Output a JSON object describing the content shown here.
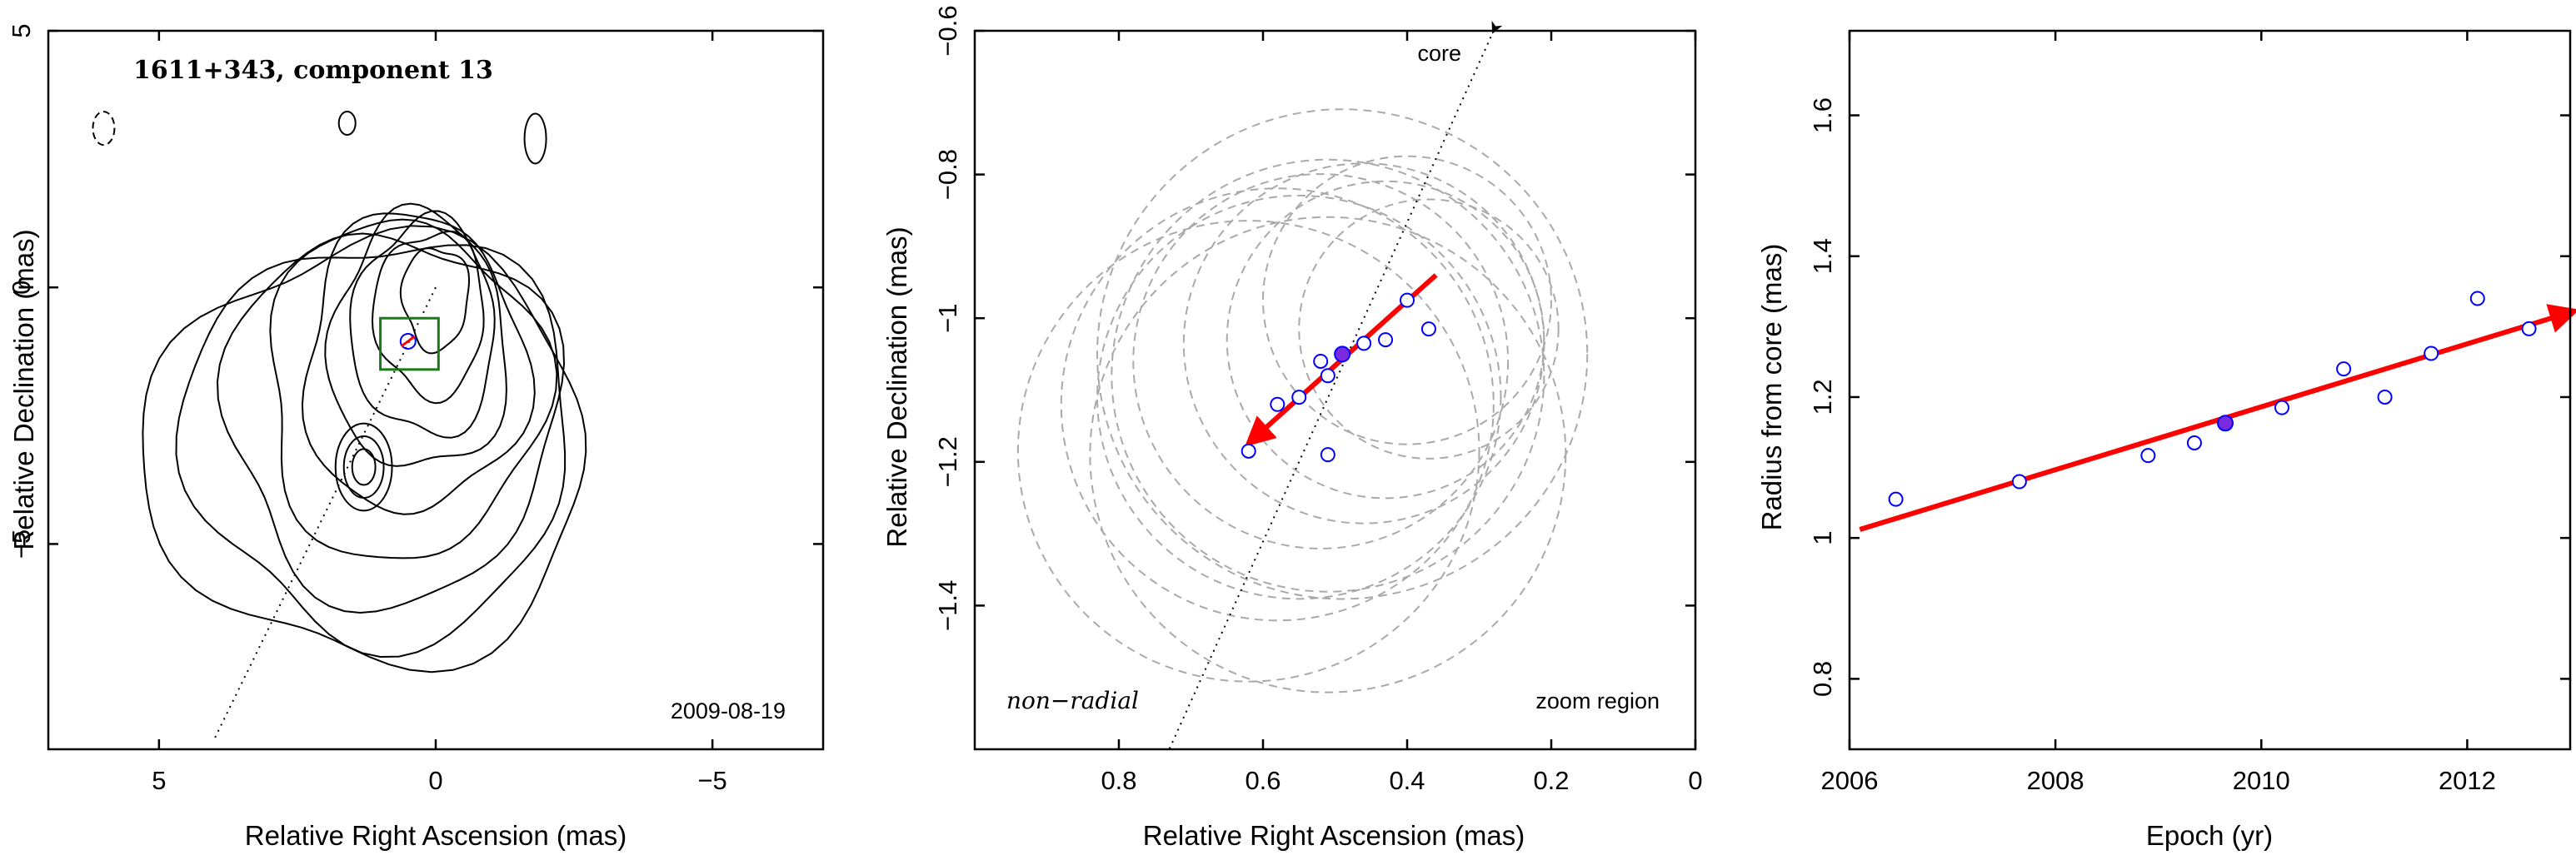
{
  "chart_data": [
    {
      "panel": "map",
      "type": "contour",
      "title": "1611+343, component 13",
      "xlabel": "Relative Right Ascension (mas)",
      "ylabel": "Relative Declination (mas)",
      "xlim": [
        7,
        -7
      ],
      "ylim": [
        -9,
        5
      ],
      "xticks": [
        5,
        0,
        -5
      ],
      "xtick_labels": [
        "5",
        "0",
        "−5"
      ],
      "yticks": [
        5,
        0,
        -5
      ],
      "ytick_labels": [
        "5",
        "0",
        "−5"
      ],
      "date_label": "2009-08-19",
      "jet_axis": {
        "from": [
          0,
          0
        ],
        "to": [
          4,
          -8.8
        ]
      },
      "component_position": [
        0.5,
        -1.05
      ],
      "zoom_box": {
        "x": [
          1,
          -0.05
        ],
        "y": [
          -1.6,
          -0.6
        ]
      },
      "zoom_box_color": "#1a7a1a",
      "contour_color": "#000000",
      "marker_color": "#0000ff",
      "highlight_color": "#ff0000"
    },
    {
      "panel": "zoom",
      "type": "scatter",
      "xlabel": "Relative Right Ascension (mas)",
      "ylabel": "Relative Declination (mas)",
      "xlim": [
        1,
        0
      ],
      "ylim": [
        -1.6,
        -0.6
      ],
      "xticks": [
        0.8,
        0.6,
        0.4,
        0.2,
        0
      ],
      "xtick_labels": [
        "0.8",
        "0.6",
        "0.4",
        "0.2",
        "0"
      ],
      "yticks": [
        -0.6,
        -0.8,
        -1,
        -1.2,
        -1.4
      ],
      "ytick_labels": [
        "−0.6",
        "−0.8",
        "−1",
        "−1.2",
        "−1.4"
      ],
      "core_label": "core",
      "non_radial_label": "non−radial",
      "zoom_label": "zoom region",
      "points": [
        {
          "x": 0.62,
          "y": -1.185
        },
        {
          "x": 0.58,
          "y": -1.12
        },
        {
          "x": 0.55,
          "y": -1.11
        },
        {
          "x": 0.52,
          "y": -1.06
        },
        {
          "x": 0.51,
          "y": -1.08
        },
        {
          "x": 0.51,
          "y": -1.19
        },
        {
          "x": 0.46,
          "y": -1.035
        },
        {
          "x": 0.43,
          "y": -1.03
        },
        {
          "x": 0.4,
          "y": -0.975
        },
        {
          "x": 0.37,
          "y": -1.015
        }
      ],
      "highlight_point": {
        "x": 0.49,
        "y": -1.05
      },
      "error_circles": [
        {
          "x": 0.62,
          "y": -1.185,
          "r": 0.32
        },
        {
          "x": 0.58,
          "y": -1.12,
          "r": 0.3
        },
        {
          "x": 0.55,
          "y": -1.11,
          "r": 0.28
        },
        {
          "x": 0.52,
          "y": -1.06,
          "r": 0.26
        },
        {
          "x": 0.51,
          "y": -1.08,
          "r": 0.3
        },
        {
          "x": 0.51,
          "y": -1.19,
          "r": 0.33
        },
        {
          "x": 0.46,
          "y": -1.035,
          "r": 0.25
        },
        {
          "x": 0.43,
          "y": -1.03,
          "r": 0.22
        },
        {
          "x": 0.4,
          "y": -0.975,
          "r": 0.2
        },
        {
          "x": 0.37,
          "y": -1.015,
          "r": 0.18
        },
        {
          "x": 0.49,
          "y": -1.05,
          "r": 0.34
        }
      ],
      "velocity_arrow": {
        "from": [
          0.36,
          -0.94
        ],
        "to": [
          0.61,
          -1.165
        ]
      },
      "jet_axis": {
        "from": [
          0.28,
          -0.6
        ],
        "to": [
          0.73,
          -1.6
        ]
      },
      "marker_color": "#0000ff",
      "highlight_color": "#7a2ae0",
      "arrow_color": "#ff0000",
      "circle_color": "#aaaaaa"
    },
    {
      "panel": "radius",
      "type": "scatter",
      "xlabel": "Epoch (yr)",
      "ylabel": "Radius from core (mas)",
      "xlim": [
        2006,
        2013
      ],
      "ylim": [
        0.7,
        1.72
      ],
      "xticks": [
        2006,
        2008,
        2010,
        2012
      ],
      "xtick_labels": [
        "2006",
        "2008",
        "2010",
        "2012"
      ],
      "yticks": [
        0.8,
        1,
        1.2,
        1.4,
        1.6
      ],
      "ytick_labels": [
        "0.8",
        "1",
        "1.2",
        "1.4",
        "1.6"
      ],
      "points": [
        {
          "x": 2006.45,
          "y": 1.055
        },
        {
          "x": 2007.65,
          "y": 1.08
        },
        {
          "x": 2008.9,
          "y": 1.117
        },
        {
          "x": 2009.35,
          "y": 1.135
        },
        {
          "x": 2010.2,
          "y": 1.185
        },
        {
          "x": 2010.8,
          "y": 1.24
        },
        {
          "x": 2011.2,
          "y": 1.2
        },
        {
          "x": 2011.65,
          "y": 1.262
        },
        {
          "x": 2012.1,
          "y": 1.34
        },
        {
          "x": 2012.6,
          "y": 1.297
        }
      ],
      "highlight_point": {
        "x": 2009.65,
        "y": 1.163
      },
      "fit_line": {
        "from": [
          2006.1,
          1.012
        ],
        "to": [
          2012.95,
          1.318
        ]
      },
      "marker_color": "#0000ff",
      "highlight_color": "#7a2ae0",
      "fit_color": "#ff0000"
    }
  ]
}
